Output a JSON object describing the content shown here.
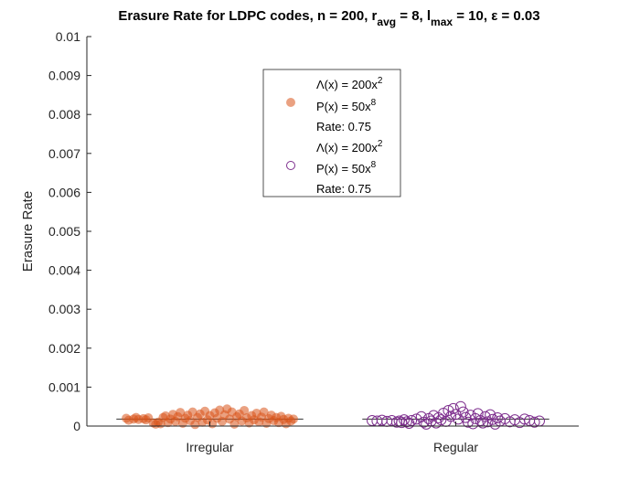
{
  "chart_data": {
    "type": "scatter",
    "title": {
      "parts": [
        "Erasure Rate for LDPC codes, n = 200, r",
        "avg",
        " = 8, l",
        "max",
        " = 10, ε = 0.03"
      ]
    },
    "xlabel": "",
    "ylabel": "Erasure Rate",
    "ylim": [
      0,
      0.01
    ],
    "yticks": [
      "0",
      "0.001",
      "0.002",
      "0.003",
      "0.004",
      "0.005",
      "0.006",
      "0.007",
      "0.008",
      "0.009",
      "0.01"
    ],
    "categories": [
      "Irregular",
      "Regular"
    ],
    "grid": false,
    "legend_position": "top-center",
    "series": [
      {
        "category": "Irregular",
        "marker": "filled-circle",
        "color": "#D95319",
        "legend_lines": [
          "Λ(x) = 200x",
          "2",
          "P(x) = 50x",
          "8",
          "Rate: 0.75"
        ],
        "mean": 0.00018,
        "points": [
          {
            "x": 0.66,
            "y": 0.0002
          },
          {
            "x": 0.67,
            "y": 0.00015
          },
          {
            "x": 0.69,
            "y": 0.00018
          },
          {
            "x": 0.7,
            "y": 0.00022
          },
          {
            "x": 0.71,
            "y": 0.00017
          },
          {
            "x": 0.73,
            "y": 0.00019
          },
          {
            "x": 0.74,
            "y": 0.00016
          },
          {
            "x": 0.75,
            "y": 0.00021
          },
          {
            "x": 0.77,
            "y": 8e-05
          },
          {
            "x": 0.78,
            "y": 5e-05
          },
          {
            "x": 0.79,
            "y": 0.0001
          },
          {
            "x": 0.8,
            "y": 6e-05
          },
          {
            "x": 0.81,
            "y": 0.00022
          },
          {
            "x": 0.82,
            "y": 0.00026
          },
          {
            "x": 0.83,
            "y": 9e-05
          },
          {
            "x": 0.84,
            "y": 0.00018
          },
          {
            "x": 0.85,
            "y": 0.0003
          },
          {
            "x": 0.86,
            "y": 0.00012
          },
          {
            "x": 0.87,
            "y": 0.00024
          },
          {
            "x": 0.88,
            "y": 0.00035
          },
          {
            "x": 0.89,
            "y": 7e-05
          },
          {
            "x": 0.9,
            "y": 0.0002
          },
          {
            "x": 0.91,
            "y": 0.00028
          },
          {
            "x": 0.92,
            "y": 0.00014
          },
          {
            "x": 0.93,
            "y": 0.00036
          },
          {
            "x": 0.94,
            "y": 4e-05
          },
          {
            "x": 0.95,
            "y": 0.00022
          },
          {
            "x": 0.96,
            "y": 0.00031
          },
          {
            "x": 0.97,
            "y": 0.0001
          },
          {
            "x": 0.98,
            "y": 0.00038
          },
          {
            "x": 0.99,
            "y": 0.00016
          },
          {
            "x": 1.0,
            "y": 0.00027
          },
          {
            "x": 1.01,
            "y": 6e-05
          },
          {
            "x": 1.02,
            "y": 0.00034
          },
          {
            "x": 1.03,
            "y": 0.0002
          },
          {
            "x": 1.04,
            "y": 0.00041
          },
          {
            "x": 1.05,
            "y": 0.00012
          },
          {
            "x": 1.06,
            "y": 0.00029
          },
          {
            "x": 1.07,
            "y": 0.00044
          },
          {
            "x": 1.08,
            "y": 0.00018
          },
          {
            "x": 1.09,
            "y": 0.00036
          },
          {
            "x": 1.1,
            "y": 5e-05
          },
          {
            "x": 1.11,
            "y": 0.00024
          },
          {
            "x": 1.12,
            "y": 0.00031
          },
          {
            "x": 1.13,
            "y": 0.00013
          },
          {
            "x": 1.14,
            "y": 0.0004
          },
          {
            "x": 1.15,
            "y": 0.00021
          },
          {
            "x": 1.16,
            "y": 8e-05
          },
          {
            "x": 1.17,
            "y": 0.00027
          },
          {
            "x": 1.18,
            "y": 0.00016
          },
          {
            "x": 1.19,
            "y": 0.00033
          },
          {
            "x": 1.2,
            "y": 0.00011
          },
          {
            "x": 1.21,
            "y": 0.00023
          },
          {
            "x": 1.22,
            "y": 0.00036
          },
          {
            "x": 1.23,
            "y": 7e-05
          },
          {
            "x": 1.24,
            "y": 0.00019
          },
          {
            "x": 1.25,
            "y": 0.00028
          },
          {
            "x": 1.26,
            "y": 0.00014
          },
          {
            "x": 1.27,
            "y": 0.00022
          },
          {
            "x": 1.28,
            "y": 9e-05
          },
          {
            "x": 1.29,
            "y": 0.00025
          },
          {
            "x": 1.3,
            "y": 0.00017
          },
          {
            "x": 1.31,
            "y": 6e-05
          },
          {
            "x": 1.32,
            "y": 0.0002
          },
          {
            "x": 1.33,
            "y": 0.00013
          },
          {
            "x": 1.34,
            "y": 0.00018
          }
        ]
      },
      {
        "category": "Regular",
        "marker": "open-circle",
        "color": "#7E2F8E",
        "legend_lines": [
          "Λ(x) = 200x",
          "2",
          "P(x) = 50x",
          "8",
          "Rate: 0.75"
        ],
        "mean": 0.00018,
        "points": [
          {
            "x": 1.66,
            "y": 0.00014
          },
          {
            "x": 1.68,
            "y": 0.00013
          },
          {
            "x": 1.7,
            "y": 0.00015
          },
          {
            "x": 1.72,
            "y": 0.00012
          },
          {
            "x": 1.74,
            "y": 0.00014
          },
          {
            "x": 1.76,
            "y": 0.0001
          },
          {
            "x": 1.77,
            "y": 0.00013
          },
          {
            "x": 1.78,
            "y": 9e-05
          },
          {
            "x": 1.79,
            "y": 0.00016
          },
          {
            "x": 1.8,
            "y": 0.00011
          },
          {
            "x": 1.81,
            "y": 7e-05
          },
          {
            "x": 1.82,
            "y": 0.00014
          },
          {
            "x": 1.84,
            "y": 0.00018
          },
          {
            "x": 1.86,
            "y": 0.00024
          },
          {
            "x": 1.87,
            "y": 0.0001
          },
          {
            "x": 1.88,
            "y": 5e-05
          },
          {
            "x": 1.89,
            "y": 0.00019
          },
          {
            "x": 1.9,
            "y": 0.00013
          },
          {
            "x": 1.91,
            "y": 0.00027
          },
          {
            "x": 1.92,
            "y": 8e-05
          },
          {
            "x": 1.93,
            "y": 0.00021
          },
          {
            "x": 1.94,
            "y": 0.00016
          },
          {
            "x": 1.95,
            "y": 0.00033
          },
          {
            "x": 1.96,
            "y": 0.00012
          },
          {
            "x": 1.97,
            "y": 0.0004
          },
          {
            "x": 1.98,
            "y": 0.00025
          },
          {
            "x": 1.99,
            "y": 0.00045
          },
          {
            "x": 2.0,
            "y": 0.0003
          },
          {
            "x": 2.01,
            "y": 0.00018
          },
          {
            "x": 2.02,
            "y": 0.0005
          },
          {
            "x": 2.03,
            "y": 0.00036
          },
          {
            "x": 2.04,
            "y": 0.00022
          },
          {
            "x": 2.05,
            "y": 0.0001
          },
          {
            "x": 2.06,
            "y": 0.00028
          },
          {
            "x": 2.07,
            "y": 6e-05
          },
          {
            "x": 2.08,
            "y": 0.00019
          },
          {
            "x": 2.09,
            "y": 0.00032
          },
          {
            "x": 2.1,
            "y": 0.00014
          },
          {
            "x": 2.11,
            "y": 8e-05
          },
          {
            "x": 2.12,
            "y": 0.00024
          },
          {
            "x": 2.13,
            "y": 0.00011
          },
          {
            "x": 2.14,
            "y": 0.00029
          },
          {
            "x": 2.15,
            "y": 0.00017
          },
          {
            "x": 2.16,
            "y": 5e-05
          },
          {
            "x": 2.17,
            "y": 0.00021
          },
          {
            "x": 2.18,
            "y": 0.00013
          },
          {
            "x": 2.2,
            "y": 0.00019
          },
          {
            "x": 2.22,
            "y": 0.00011
          },
          {
            "x": 2.24,
            "y": 0.00016
          },
          {
            "x": 2.26,
            "y": 9e-05
          },
          {
            "x": 2.28,
            "y": 0.00018
          },
          {
            "x": 2.3,
            "y": 0.00014
          },
          {
            "x": 2.32,
            "y": 0.0001
          },
          {
            "x": 2.34,
            "y": 0.00013
          }
        ]
      }
    ]
  }
}
